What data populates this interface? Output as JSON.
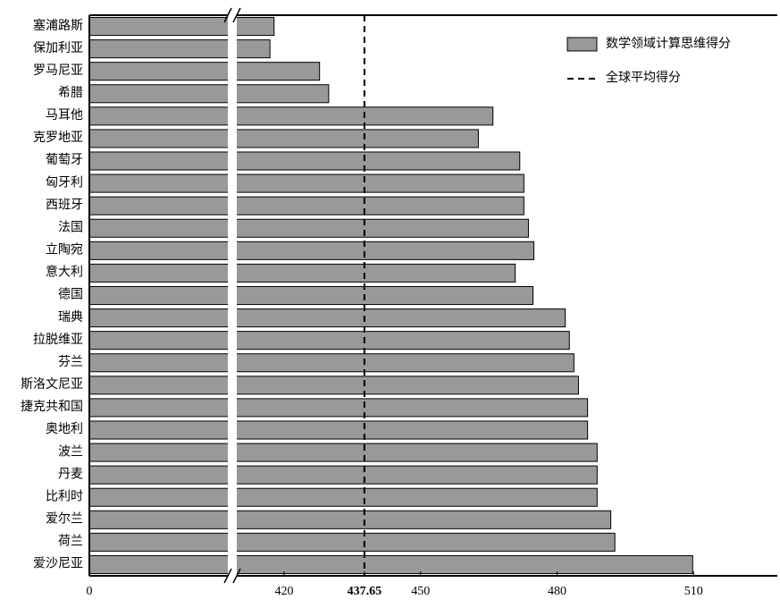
{
  "chart_data": {
    "type": "barh",
    "categories": [
      "塞浦路斯",
      "保加利亚",
      "罗马尼亚",
      "希腊",
      "马耳他",
      "克罗地亚",
      "葡萄牙",
      "匈牙利",
      "西班牙",
      "法国",
      "立陶宛",
      "意大利",
      "德国",
      "瑞典",
      "拉脱维亚",
      "芬兰",
      "斯洛文尼亚",
      "捷克共和国",
      "奥地利",
      "波兰",
      "丹麦",
      "比利时",
      "爱尔兰",
      "荷兰",
      "爱沙尼亚"
    ],
    "series": [
      {
        "name": "数学领域计算思维得分",
        "color": "#999999",
        "values": [
          417.8,
          416.9,
          427.8,
          429.8,
          465.9,
          462.7,
          471.8,
          472.7,
          472.7,
          473.7,
          474.9,
          470.8,
          474.7,
          481.8,
          482.7,
          483.7,
          484.7,
          486.7,
          486.7,
          488.8,
          488.8,
          488.8,
          491.8,
          492.7,
          509.8
        ]
      }
    ],
    "reference_line": {
      "name": "全球平均得分",
      "value": 437.65
    },
    "xlim": [
      0,
      528.4
    ],
    "xbreak": 409.6,
    "xticks": [
      0,
      420,
      437.65,
      450,
      480,
      510
    ],
    "legend": "upper right"
  }
}
